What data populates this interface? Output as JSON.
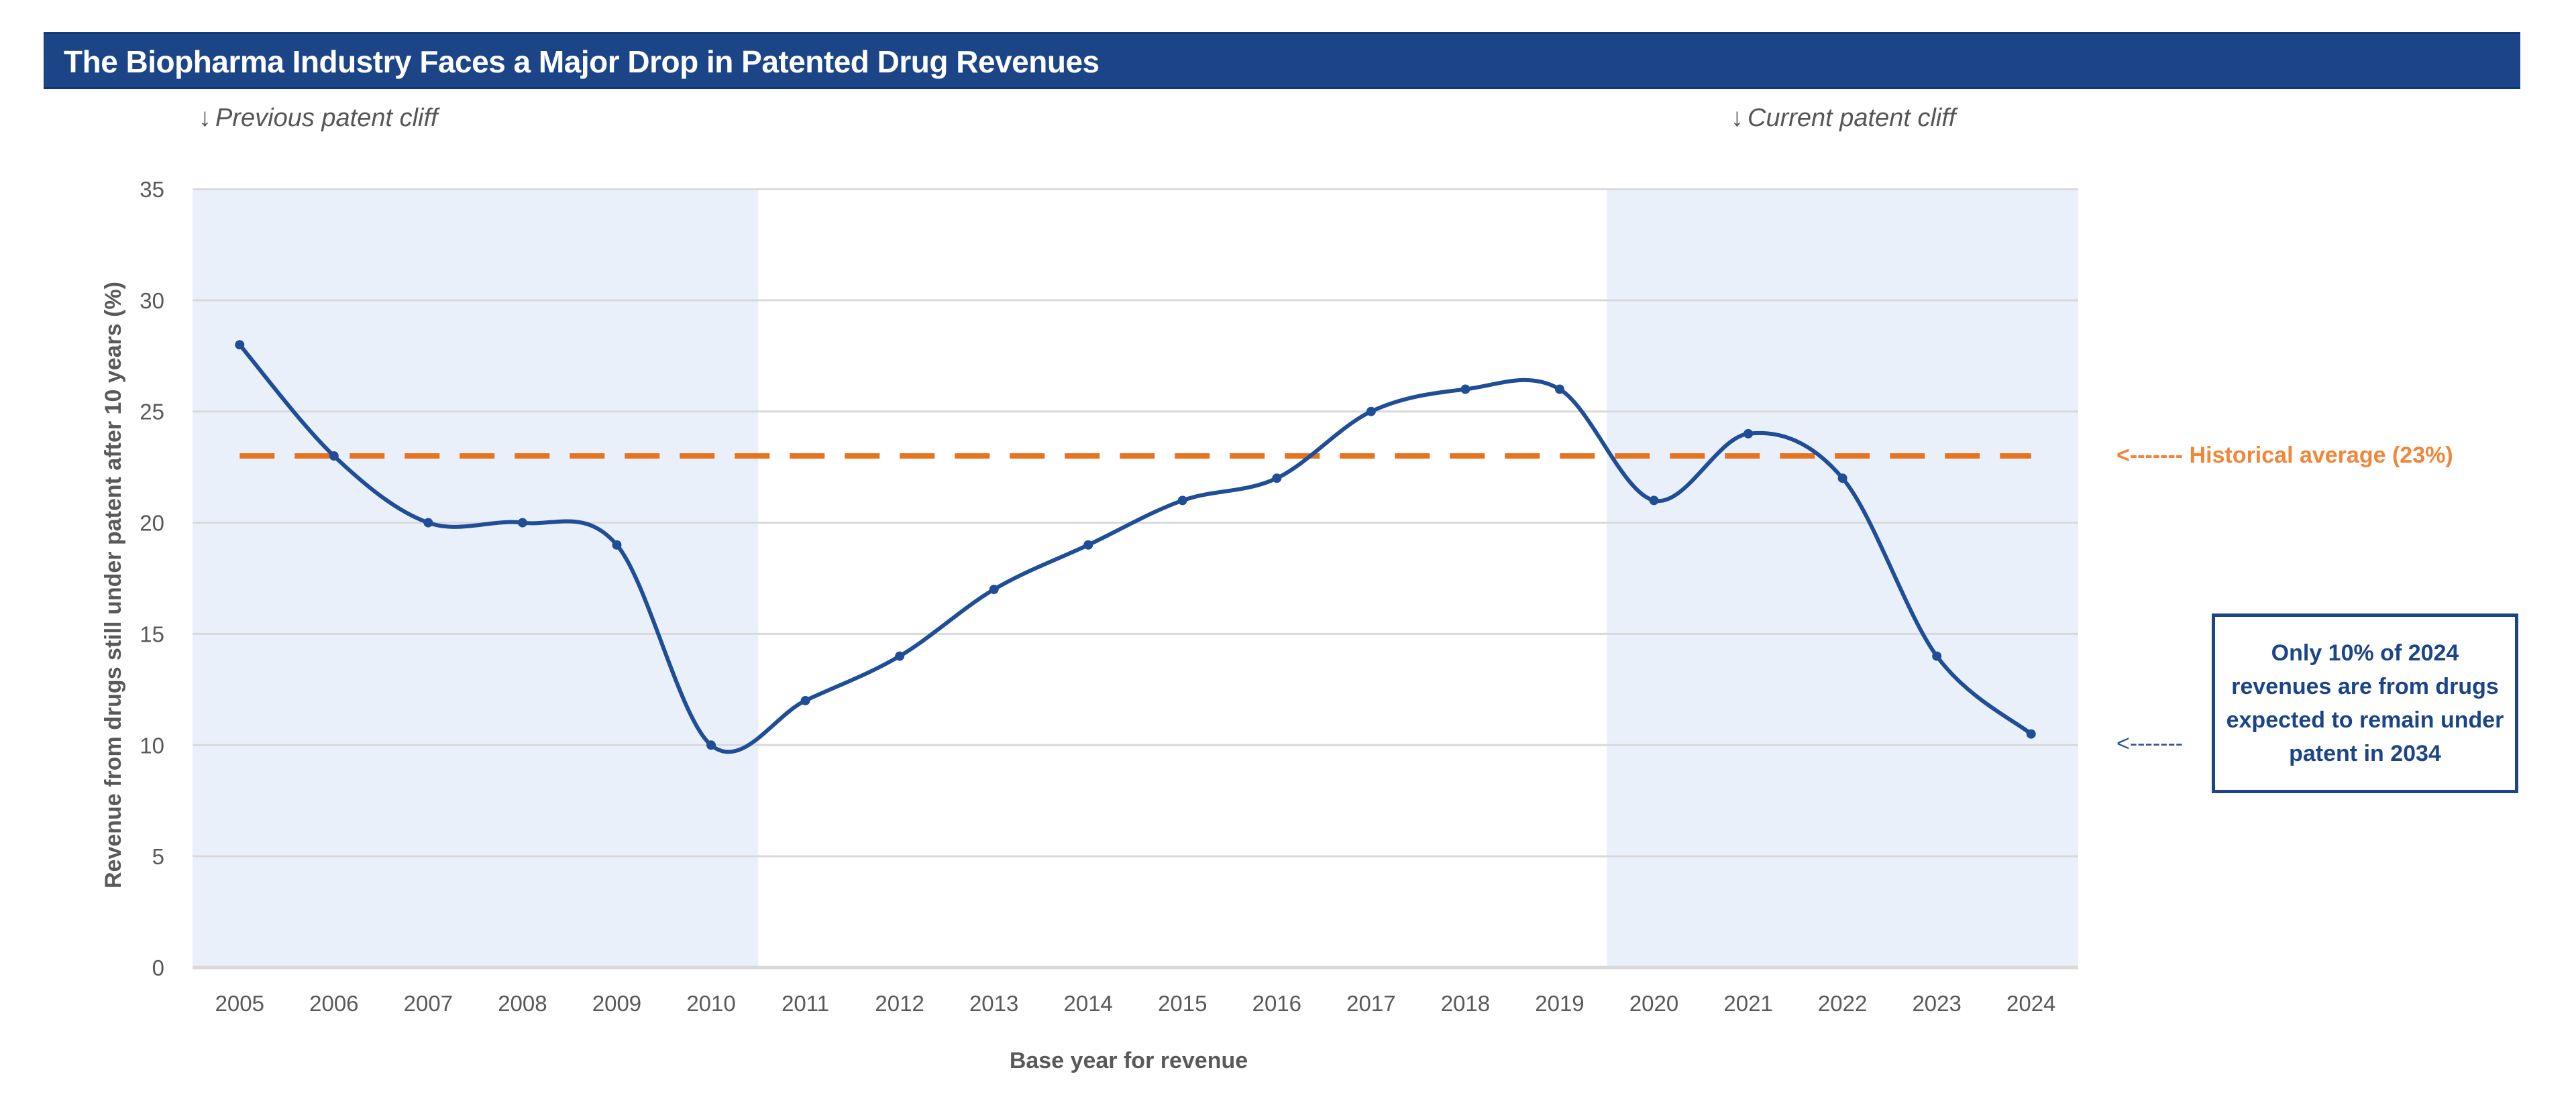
{
  "header": {
    "title": "The Biopharma Industry Faces a Major Drop in Patented Drug Revenues"
  },
  "annotations": {
    "previous_cliff": {
      "arrow": "↓",
      "label": "Previous patent cliff"
    },
    "current_cliff": {
      "arrow": "↓",
      "label": "Current patent cliff"
    },
    "average": {
      "arrow": "<-------",
      "label": "Historical average (23%)"
    },
    "note": {
      "arrow": "<-------",
      "text": "Only 10% of 2024 revenues are from drugs expected to remain under patent in 2034"
    }
  },
  "colors": {
    "title_bg": "#1c4587",
    "line": "#1f4e96",
    "average_line": "#e8731e",
    "average_label": "#f0863a",
    "shade": "#e9f0fa",
    "grid": "#d9d9d9",
    "note": "#1c4587"
  },
  "chart_data": {
    "type": "line",
    "title": "The Biopharma Industry Faces a Major Drop in Patented Drug Revenues",
    "xlabel": "Base year for revenue",
    "ylabel": "Revenue from drugs still under patent after 10 years (%)",
    "categories": [
      "2005",
      "2006",
      "2007",
      "2008",
      "2009",
      "2010",
      "2011",
      "2012",
      "2013",
      "2014",
      "2015",
      "2016",
      "2017",
      "2018",
      "2019",
      "2020",
      "2021",
      "2022",
      "2023",
      "2024"
    ],
    "series": [
      {
        "name": "Revenue still under patent after 10 years (%)",
        "values": [
          28,
          23,
          20,
          20,
          19,
          10,
          12,
          14,
          17,
          19,
          21,
          22,
          25,
          26,
          26,
          21,
          24,
          22,
          14,
          10.5
        ],
        "smooth": true,
        "markers": true
      }
    ],
    "reference_lines": [
      {
        "name": "Historical average",
        "value": 23,
        "style": "dashed"
      }
    ],
    "shaded_ranges": [
      {
        "name": "Previous patent cliff",
        "from": "2005",
        "to": "2010"
      },
      {
        "name": "Current patent cliff",
        "from": "2020",
        "to": "2024"
      }
    ],
    "ylim": [
      0,
      35
    ],
    "yticks": [
      0,
      5,
      10,
      15,
      20,
      25,
      30,
      35
    ],
    "grid": true,
    "legend": "none"
  }
}
